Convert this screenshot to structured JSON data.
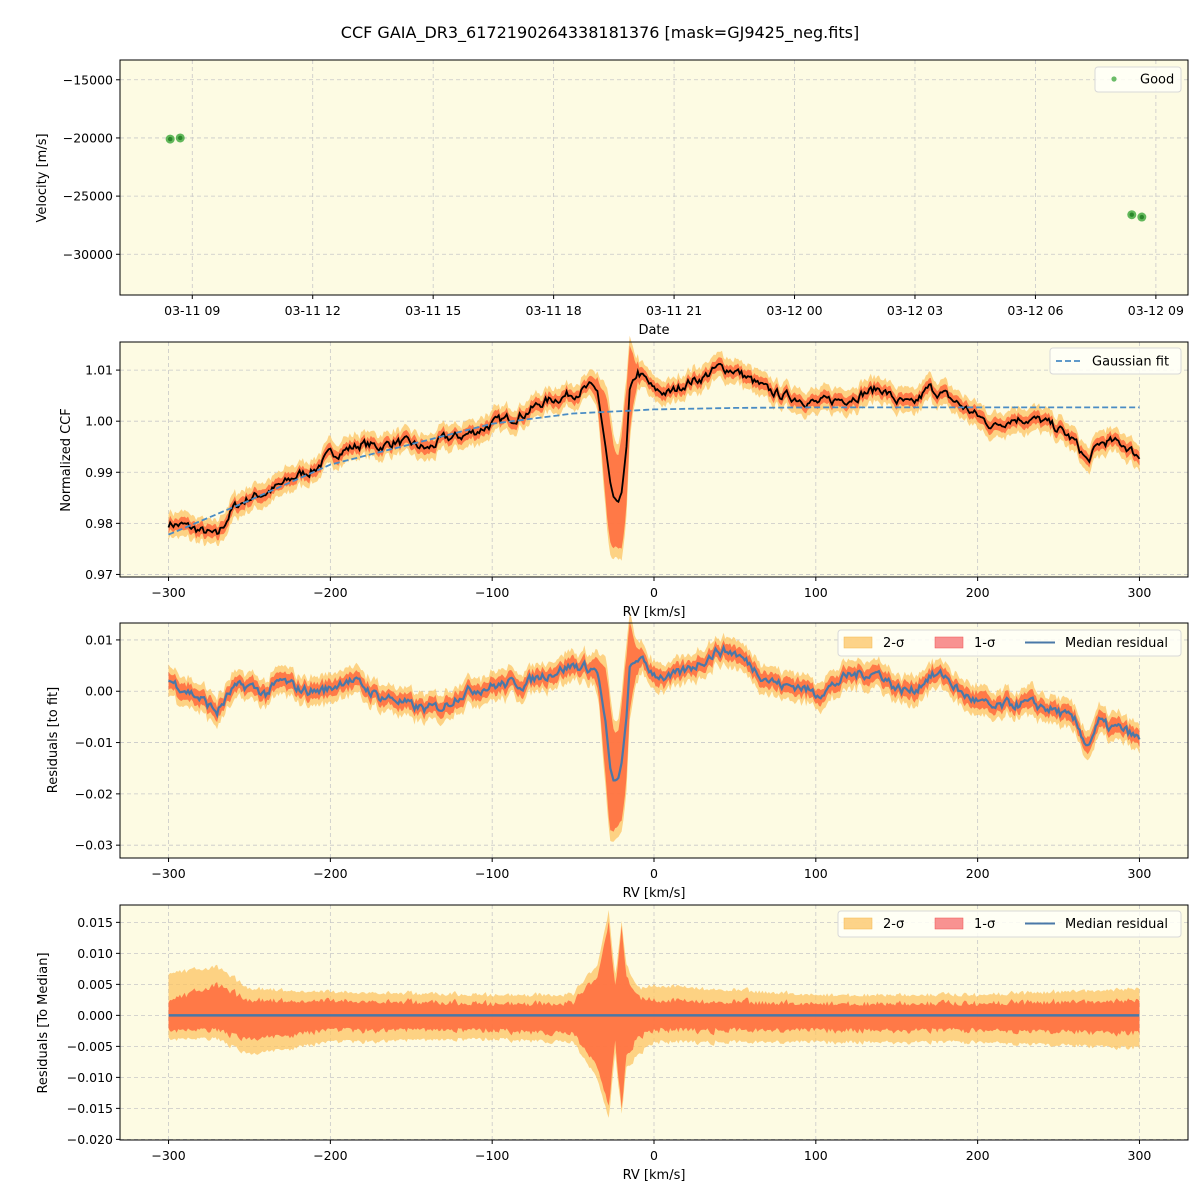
{
  "figure": {
    "title": "CCF GAIA_DR3_6172190264338181376 [mask=GJ9425_neg.fits]",
    "background": "#ffffff",
    "axes_facecolor": "#fdfbe3"
  },
  "colors": {
    "good_points": "#2ca02c",
    "gaussian_fit": "#4a8cc4",
    "ccf_line": "#000000",
    "sigma2_fill": "#fcc463",
    "sigma1_fill": "#ff6a3d",
    "sigma1_legend": "#f77f7f",
    "median_residual": "#4a78a8",
    "grid": "#c8c8c8"
  },
  "panels": [
    {
      "id": "velocity",
      "ylabel": "Velocity [m/s]",
      "xlabel": "Date",
      "yticks": [
        "−15000",
        "−20000",
        "−25000",
        "−30000"
      ],
      "xticks": [
        "03-11 09",
        "03-11 12",
        "03-11 15",
        "03-11 18",
        "03-11 21",
        "03-12 00",
        "03-12 03",
        "03-12 06",
        "03-12 09"
      ],
      "legend": [
        {
          "label": "Good",
          "kind": "marker"
        }
      ]
    },
    {
      "id": "ccf",
      "ylabel": "Normalized CCF",
      "xlabel": "RV [km/s]",
      "yticks": [
        "1.01",
        "1.00",
        "0.99",
        "0.98",
        "0.97"
      ],
      "xticks": [
        "−300",
        "−200",
        "−100",
        "0",
        "100",
        "200",
        "300"
      ],
      "legend": [
        {
          "label": "Gaussian fit",
          "kind": "dashed"
        }
      ]
    },
    {
      "id": "residuals_fit",
      "ylabel": "Residuals [to fit]",
      "xlabel": "RV [km/s]",
      "yticks": [
        "0.01",
        "0.00",
        "−0.01",
        "−0.02",
        "−0.03"
      ],
      "xticks": [
        "−300",
        "−200",
        "−100",
        "0",
        "100",
        "200",
        "300"
      ],
      "legend": [
        {
          "label": "2-σ",
          "kind": "patch2"
        },
        {
          "label": "1-σ",
          "kind": "patch1"
        },
        {
          "label": "Median residual",
          "kind": "line"
        }
      ]
    },
    {
      "id": "residuals_median",
      "ylabel": "Residuals [To Median]",
      "xlabel": "RV [km/s]",
      "yticks": [
        "0.015",
        "0.010",
        "0.005",
        "0.000",
        "−0.005",
        "−0.010",
        "−0.015",
        "−0.020"
      ],
      "xticks": [
        "−300",
        "−200",
        "−100",
        "0",
        "100",
        "200",
        "300"
      ],
      "legend": [
        {
          "label": "2-σ",
          "kind": "patch2"
        },
        {
          "label": "1-σ",
          "kind": "patch1"
        },
        {
          "label": "Median residual",
          "kind": "line"
        }
      ]
    }
  ],
  "chart_data": [
    {
      "type": "scatter",
      "title": "CCF GAIA_DR3_6172190264338181376 [mask=GJ9425_neg.fits]",
      "xlabel": "Date",
      "ylabel": "Velocity [m/s]",
      "ylim": [
        -33500,
        -13300
      ],
      "xlim_hours_from_0311_09": [
        -1.8,
        24.8
      ],
      "grid": true,
      "legend_position": "upper right",
      "series": [
        {
          "name": "Good",
          "x_hours_from_0311_09": [
            -0.55,
            -0.3,
            23.4,
            23.65
          ],
          "x_labels": [
            "03-11 08:27",
            "03-11 08:42",
            "03-12 08:24",
            "03-12 08:39"
          ],
          "y": [
            -20100,
            -20000,
            -26600,
            -26800
          ]
        }
      ]
    },
    {
      "type": "line",
      "xlabel": "RV [km/s]",
      "ylabel": "Normalized CCF",
      "xlim": [
        -330,
        330
      ],
      "ylim": [
        0.9695,
        1.0155
      ],
      "grid": true,
      "legend_position": "upper right",
      "series": [
        {
          "name": "CCF (median)",
          "x": [
            -300,
            -290,
            -280,
            -270,
            -260,
            -250,
            -240,
            -230,
            -220,
            -210,
            -200,
            -190,
            -180,
            -170,
            -160,
            -150,
            -140,
            -130,
            -120,
            -110,
            -100,
            -90,
            -80,
            -70,
            -60,
            -50,
            -40,
            -35,
            -30,
            -27,
            -25,
            -22,
            -20,
            -17,
            -15,
            -10,
            -5,
            0,
            10,
            20,
            30,
            40,
            50,
            60,
            70,
            80,
            90,
            100,
            110,
            120,
            130,
            140,
            150,
            160,
            170,
            180,
            190,
            200,
            210,
            220,
            230,
            240,
            250,
            260,
            268,
            275,
            280,
            290,
            300
          ],
          "y": [
            0.98,
            0.9795,
            0.9785,
            0.9775,
            0.983,
            0.985,
            0.986,
            0.9875,
            0.9895,
            0.9905,
            0.9935,
            0.9945,
            0.9955,
            0.995,
            0.996,
            0.9955,
            0.9945,
            0.9965,
            0.997,
            0.998,
            0.9995,
            1.0005,
            1.0015,
            1.0035,
            1.0045,
            1.0055,
            1.0065,
            1.006,
            0.995,
            0.988,
            0.985,
            0.984,
            0.986,
            0.995,
            1.006,
            1.0095,
            1.008,
            1.006,
            1.0055,
            1.0075,
            1.0085,
            1.0105,
            1.01,
            1.008,
            1.006,
            1.005,
            1.0045,
            1.0035,
            1.004,
            1.0045,
            1.0055,
            1.0065,
            1.004,
            1.003,
            1.0065,
            1.005,
            1.003,
            1.001,
            0.999,
            1.0005,
            1.0005,
            1.0,
            0.9985,
            0.996,
            0.992,
            0.9955,
            0.996,
            0.9955,
            0.993
          ]
        },
        {
          "name": "Gaussian fit",
          "x": [
            -300,
            -250,
            -200,
            -150,
            -100,
            -50,
            0,
            50,
            100,
            150,
            200,
            250,
            300
          ],
          "y": [
            0.9778,
            0.9845,
            0.9915,
            0.9955,
            0.9995,
            1.0015,
            1.0023,
            1.0026,
            1.0027,
            1.0027,
            1.0027,
            1.0027,
            1.0027
          ]
        }
      ]
    },
    {
      "type": "area",
      "xlabel": "RV [km/s]",
      "ylabel": "Residuals [to fit]",
      "xlim": [
        -330,
        330
      ],
      "ylim": [
        -0.0325,
        0.0133
      ],
      "grid": true,
      "legend_position": "upper right",
      "series": [
        {
          "name": "Median residual",
          "x": [
            -300,
            -290,
            -280,
            -270,
            -260,
            -250,
            -240,
            -230,
            -220,
            -210,
            -200,
            -190,
            -180,
            -170,
            -160,
            -150,
            -140,
            -130,
            -120,
            -110,
            -100,
            -90,
            -80,
            -70,
            -60,
            -50,
            -40,
            -35,
            -30,
            -27,
            -25,
            -22,
            -20,
            -17,
            -15,
            -10,
            -5,
            0,
            10,
            20,
            30,
            40,
            50,
            60,
            70,
            80,
            90,
            100,
            110,
            120,
            130,
            140,
            150,
            160,
            170,
            180,
            190,
            200,
            210,
            220,
            230,
            240,
            250,
            260,
            268,
            275,
            280,
            290,
            300
          ],
          "y": [
            0.0022,
            0.0005,
            -0.0015,
            -0.004,
            0.0005,
            0.001,
            -0.0005,
            0.002,
            0.0005,
            0.0,
            0.0005,
            0.0025,
            0.001,
            -0.001,
            -0.0015,
            -0.003,
            -0.0035,
            -0.003,
            -0.0005,
            0.0005,
            0.001,
            0.0015,
            0.0015,
            0.003,
            0.004,
            0.005,
            0.0045,
            0.004,
            -0.006,
            -0.015,
            -0.0175,
            -0.017,
            -0.014,
            -0.005,
            0.0045,
            0.0065,
            0.005,
            0.0035,
            0.0025,
            0.004,
            0.006,
            0.008,
            0.0075,
            0.005,
            0.0025,
            0.001,
            0.001,
            -0.0005,
            0.001,
            0.003,
            0.0035,
            0.0035,
            0.0005,
            0.0,
            0.003,
            0.003,
            -0.0005,
            -0.002,
            -0.0035,
            -0.0025,
            -0.0025,
            -0.003,
            -0.004,
            -0.006,
            -0.0105,
            -0.006,
            -0.007,
            -0.0075,
            -0.0095
          ]
        },
        {
          "name": "1-σ",
          "half_width_typical": 0.0015,
          "half_width_at_dip": 0.006
        },
        {
          "name": "2-σ",
          "half_width_typical": 0.0025,
          "half_width_at_dip": 0.009
        }
      ]
    },
    {
      "type": "area",
      "xlabel": "RV [km/s]",
      "ylabel": "Residuals [To Median]",
      "xlim": [
        -330,
        330
      ],
      "ylim": [
        -0.0201,
        0.0178
      ],
      "grid": true,
      "legend_position": "upper right",
      "series": [
        {
          "name": "Median residual",
          "x": [
            -300,
            300
          ],
          "y": [
            0.0,
            0.0
          ]
        },
        {
          "name": "1-σ",
          "x": [
            -300,
            -270,
            -250,
            -200,
            -100,
            -50,
            -35,
            -28,
            -24,
            -20,
            -17,
            -10,
            0,
            100,
            200,
            300
          ],
          "upper": [
            0.002,
            0.0045,
            0.002,
            0.002,
            0.0015,
            0.0015,
            0.006,
            0.0145,
            0.004,
            0.0135,
            0.006,
            0.0025,
            0.002,
            0.0015,
            0.0015,
            0.002
          ],
          "lower": [
            -0.002,
            -0.002,
            -0.0035,
            -0.002,
            -0.002,
            -0.0025,
            -0.008,
            -0.0145,
            -0.004,
            -0.0145,
            -0.006,
            -0.003,
            -0.002,
            -0.002,
            -0.002,
            -0.0025
          ]
        },
        {
          "name": "2-σ",
          "x": [
            -300,
            -270,
            -250,
            -200,
            -100,
            -50,
            -35,
            -28,
            -24,
            -20,
            -17,
            -10,
            0,
            100,
            200,
            300
          ],
          "upper": [
            0.0065,
            0.0075,
            0.004,
            0.0035,
            0.003,
            0.003,
            0.008,
            0.0165,
            0.006,
            0.0145,
            0.008,
            0.004,
            0.0045,
            0.003,
            0.003,
            0.004
          ],
          "lower": [
            -0.0035,
            -0.0035,
            -0.006,
            -0.004,
            -0.0035,
            -0.004,
            -0.01,
            -0.0165,
            -0.006,
            -0.0155,
            -0.008,
            -0.006,
            -0.004,
            -0.004,
            -0.004,
            -0.005
          ]
        }
      ]
    }
  ]
}
